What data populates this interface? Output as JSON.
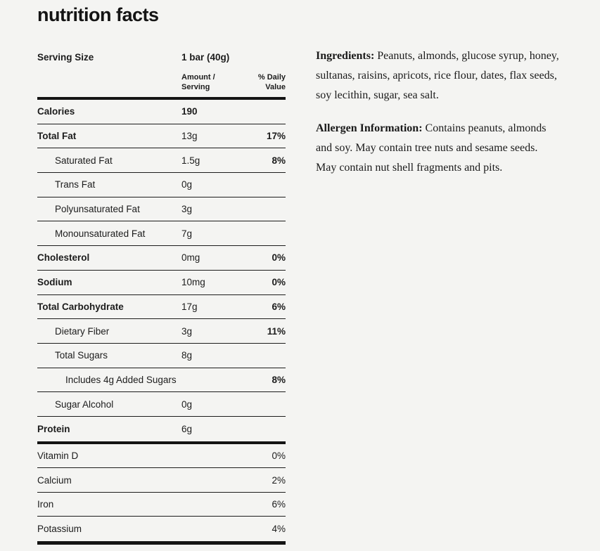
{
  "page": {
    "background": "#f4f4f2",
    "text_color": "#1c1c1c",
    "rule_color": "#141414"
  },
  "title": "nutrition facts",
  "label": {
    "serving_size_label": "Serving Size",
    "serving_size_value": "1 bar (40g)",
    "col_amount_header": "Amount /\nServing",
    "col_dv_header": "% Daily\nValue",
    "rows": [
      {
        "name": "Calories",
        "amount": "190",
        "dv": "",
        "indent": 0,
        "bold": true,
        "amount_bold": true
      },
      {
        "name": "Total Fat",
        "amount": "13g",
        "dv": "17%",
        "indent": 0,
        "bold": true,
        "amount_bold": false
      },
      {
        "name": "Saturated Fat",
        "amount": "1.5g",
        "dv": "8%",
        "indent": 1,
        "bold": false,
        "amount_bold": false
      },
      {
        "name": "Trans Fat",
        "amount": "0g",
        "dv": "",
        "indent": 1,
        "bold": false,
        "amount_bold": false
      },
      {
        "name": "Polyunsaturated Fat",
        "amount": "3g",
        "dv": "",
        "indent": 1,
        "bold": false,
        "amount_bold": false
      },
      {
        "name": "Monounsaturated Fat",
        "amount": "7g",
        "dv": "",
        "indent": 1,
        "bold": false,
        "amount_bold": false
      },
      {
        "name": "Cholesterol",
        "amount": "0mg",
        "dv": "0%",
        "indent": 0,
        "bold": true,
        "amount_bold": false
      },
      {
        "name": "Sodium",
        "amount": "10mg",
        "dv": "0%",
        "indent": 0,
        "bold": true,
        "amount_bold": false
      },
      {
        "name": "Total Carbohydrate",
        "amount": "17g",
        "dv": "6%",
        "indent": 0,
        "bold": true,
        "amount_bold": false
      },
      {
        "name": "Dietary Fiber",
        "amount": "3g",
        "dv": "11%",
        "indent": 1,
        "bold": false,
        "amount_bold": false
      },
      {
        "name": "Total Sugars",
        "amount": "8g",
        "dv": "",
        "indent": 1,
        "bold": false,
        "amount_bold": false
      },
      {
        "name": "Includes 4g Added Sugars",
        "amount": "",
        "dv": "8%",
        "indent": 2,
        "bold": false,
        "amount_bold": false
      },
      {
        "name": "Sugar Alcohol",
        "amount": "0g",
        "dv": "",
        "indent": 1,
        "bold": false,
        "amount_bold": false
      },
      {
        "name": "Protein",
        "amount": "6g",
        "dv": "",
        "indent": 0,
        "bold": true,
        "amount_bold": false
      }
    ],
    "micronutrients": [
      {
        "name": "Vitamin D",
        "dv": "0%"
      },
      {
        "name": "Calcium",
        "dv": "2%"
      },
      {
        "name": "Iron",
        "dv": "6%"
      },
      {
        "name": "Potassium",
        "dv": "4%"
      }
    ]
  },
  "info_panel": {
    "ingredients_label": "Ingredients:",
    "ingredients_text": " Peanuts, almonds, glucose syrup, honey, sultanas, raisins, apricots, rice flour, dates, flax seeds, soy lecithin, sugar, sea salt.",
    "allergen_label": "Allergen Information:",
    "allergen_text": " Contains peanuts, almonds and soy. May contain tree nuts and sesame seeds. May contain nut shell fragments and pits."
  }
}
